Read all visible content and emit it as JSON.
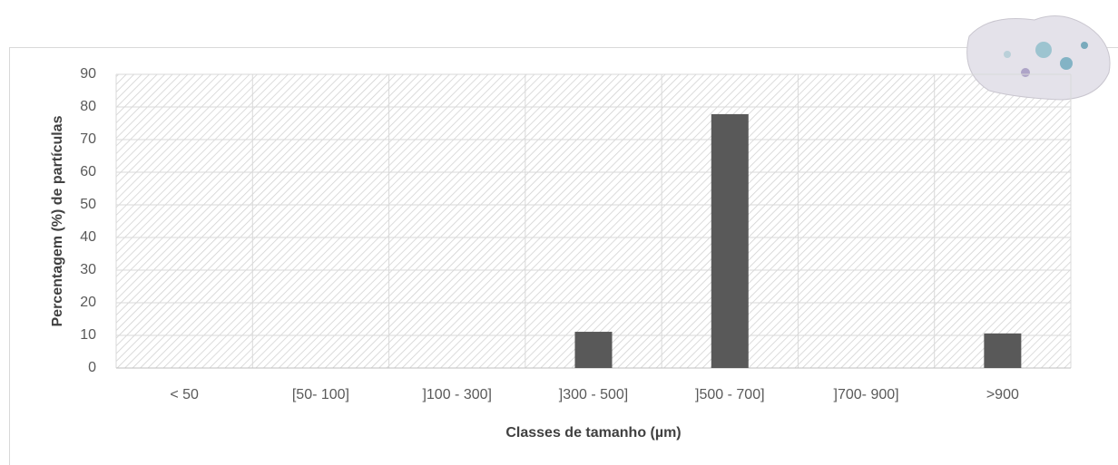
{
  "chart_data": {
    "type": "bar",
    "x_label": "Classes de tamanho (µm)",
    "y_label": "Percentagem (%) de partículas",
    "categories": [
      "< 50",
      "[50- 100]",
      "]100 - 300]",
      "]300 - 500]",
      "]500 - 700]",
      "]700- 900]",
      ">900"
    ],
    "values": [
      0,
      0,
      0,
      11.1,
      77.8,
      0,
      10.6
    ],
    "color": "#595959",
    "ylim": [
      0,
      90
    ],
    "yticks": [
      0,
      10,
      20,
      30,
      40,
      50,
      60,
      70,
      80,
      90
    ],
    "grid": true
  }
}
